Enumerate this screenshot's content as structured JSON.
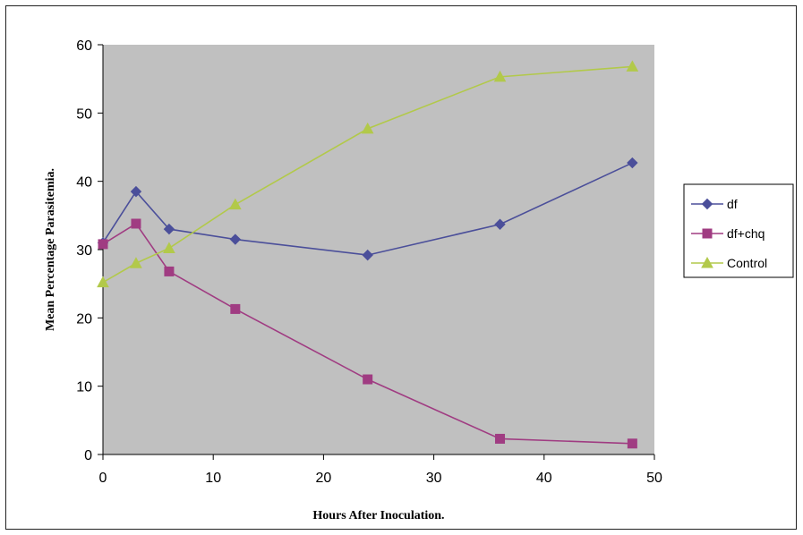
{
  "chart_data": {
    "type": "line",
    "xlabel": "Hours After Inoculation.",
    "ylabel": "Mean Percentage Parasitemia.",
    "xlim": [
      0,
      50
    ],
    "ylim": [
      0,
      60
    ],
    "x_ticks": [
      0,
      10,
      20,
      30,
      40,
      50
    ],
    "y_ticks": [
      0,
      10,
      20,
      30,
      40,
      50,
      60
    ],
    "grid": false,
    "plot_background": "#c0c0c0",
    "legend_position": "right",
    "series": [
      {
        "name": "df",
        "color": "#4b4f9a",
        "marker": "diamond",
        "x": [
          0,
          3,
          6,
          12,
          24,
          36,
          48
        ],
        "y": [
          31,
          38.5,
          33,
          31.5,
          29.2,
          33.7,
          42.7
        ]
      },
      {
        "name": "df+chq",
        "color": "#a03c82",
        "marker": "square",
        "x": [
          0,
          3,
          6,
          12,
          24,
          36,
          48
        ],
        "y": [
          30.8,
          33.8,
          26.8,
          21.3,
          11,
          2.3,
          1.6
        ]
      },
      {
        "name": "Control",
        "color": "#b2c94a",
        "marker": "triangle",
        "x": [
          0,
          3,
          6,
          12,
          24,
          36,
          48
        ],
        "y": [
          25.2,
          28,
          30.2,
          36.6,
          47.7,
          55.3,
          56.8
        ]
      }
    ]
  }
}
